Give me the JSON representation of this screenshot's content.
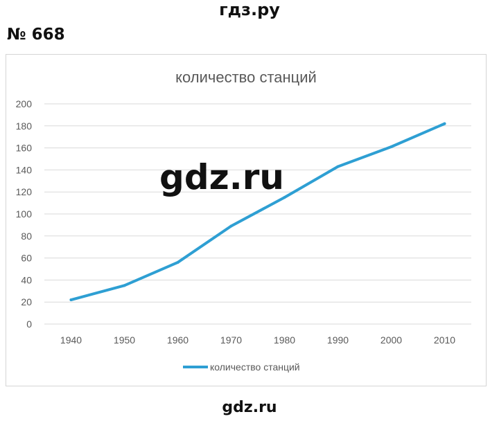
{
  "header": {
    "site_label": "гдз.ру",
    "problem_number": "№ 668"
  },
  "footer": {
    "site_label": "gdz.ru"
  },
  "watermark": "gdz.ru",
  "colors": {
    "line": "#2e9fd3",
    "grid": "#d9d9d9",
    "text": "#595959"
  },
  "chart_data": {
    "type": "line",
    "title": "количество станций",
    "xlabel": "",
    "ylabel": "",
    "categories": [
      "1940",
      "1950",
      "1960",
      "1970",
      "1980",
      "1990",
      "2000",
      "2010"
    ],
    "series": [
      {
        "name": "количество станций",
        "values": [
          22,
          35,
          56,
          89,
          115,
          143,
          161,
          182
        ]
      }
    ],
    "ylim": [
      0,
      200
    ],
    "yticks": [
      0,
      20,
      40,
      60,
      80,
      100,
      120,
      140,
      160,
      180,
      200
    ],
    "grid": true,
    "legend_position": "bottom"
  }
}
